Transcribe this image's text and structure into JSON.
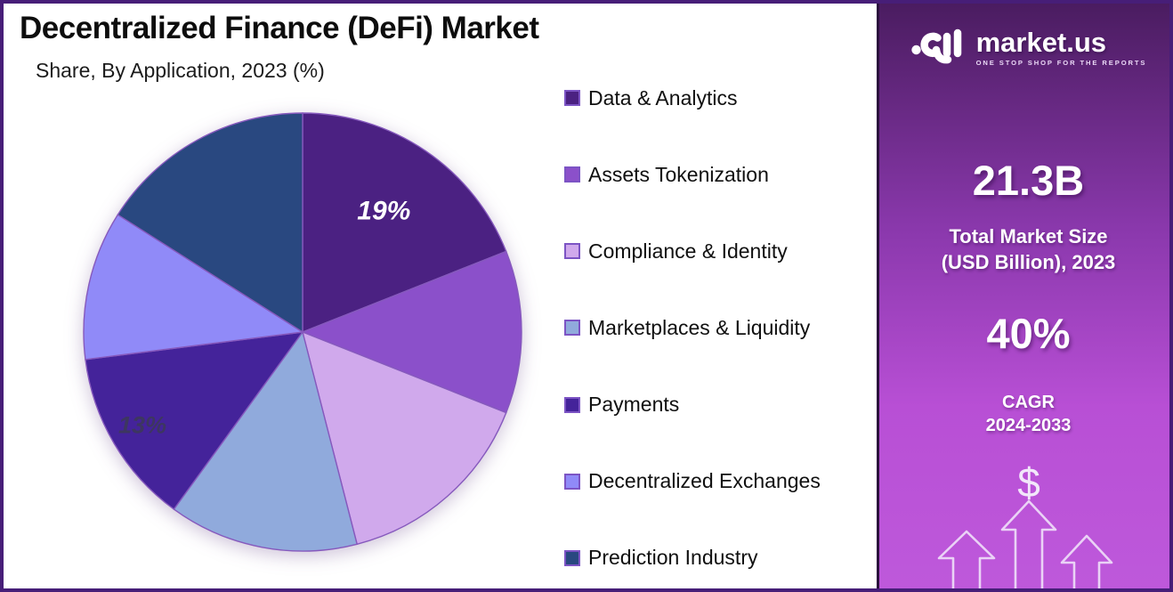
{
  "header": {
    "title": "Decentralized Finance (DeFi) Market",
    "subtitle": "Share, By Application, 2023 (%)"
  },
  "chart_data": {
    "type": "pie",
    "title": "Decentralized Finance (DeFi) Market Share, By Application, 2023 (%)",
    "unit": "%",
    "start_angle": "top",
    "direction": "clockwise",
    "legend_position": "right",
    "categories": [
      "Data & Analytics",
      "Assets Tokenization",
      "Compliance & Identity",
      "Marketplaces & Liquidity",
      "Payments",
      "Decentralized Exchanges",
      "Prediction Industry"
    ],
    "values": [
      19,
      12,
      15,
      14,
      13,
      11,
      16
    ],
    "colors": [
      "#4B2182",
      "#8B50CA",
      "#D0A9EC",
      "#90AADC",
      "#44239A",
      "#908AF8",
      "#294880"
    ],
    "stroke_color": "#8659BD",
    "visible_labels": [
      {
        "index": 0,
        "text": "19%",
        "color": "#ffffff",
        "font_size": 30,
        "radius_frac": 0.66
      },
      {
        "index": 4,
        "text": "13%",
        "color": "#3D3660",
        "font_size": 27,
        "radius_frac": 0.85
      }
    ]
  },
  "legend": {
    "swatch_border": "#7C54C4",
    "items": [
      {
        "label": "Data & Analytics",
        "color": "#4B2182"
      },
      {
        "label": "Assets Tokenization",
        "color": "#8B50CA"
      },
      {
        "label": "Compliance & Identity",
        "color": "#D0A9EC"
      },
      {
        "label": "Marketplaces & Liquidity",
        "color": "#90AADC"
      },
      {
        "label": "Payments",
        "color": "#44239A"
      },
      {
        "label": "Decentralized Exchanges",
        "color": "#908AF8"
      },
      {
        "label": "Prediction Industry",
        "color": "#294880"
      }
    ]
  },
  "sidebar": {
    "brand": {
      "name": "market.us",
      "tagline": "ONE STOP SHOP FOR THE REPORTS",
      "logo_icon": "market-us-wave-logo"
    },
    "stats": [
      {
        "value": "21.3B",
        "label_lines": [
          "Total Market Size",
          "(USD Billion), 2023"
        ]
      },
      {
        "value": "40%",
        "label_lines": [
          "CAGR",
          "2024-2033"
        ]
      }
    ],
    "dollar_sign": "$",
    "gradient": [
      "#4A1C60",
      "#8A38AC",
      "#B84FD5",
      "#BE59DB"
    ],
    "arrow_outline_color": "#F0E4F9"
  }
}
